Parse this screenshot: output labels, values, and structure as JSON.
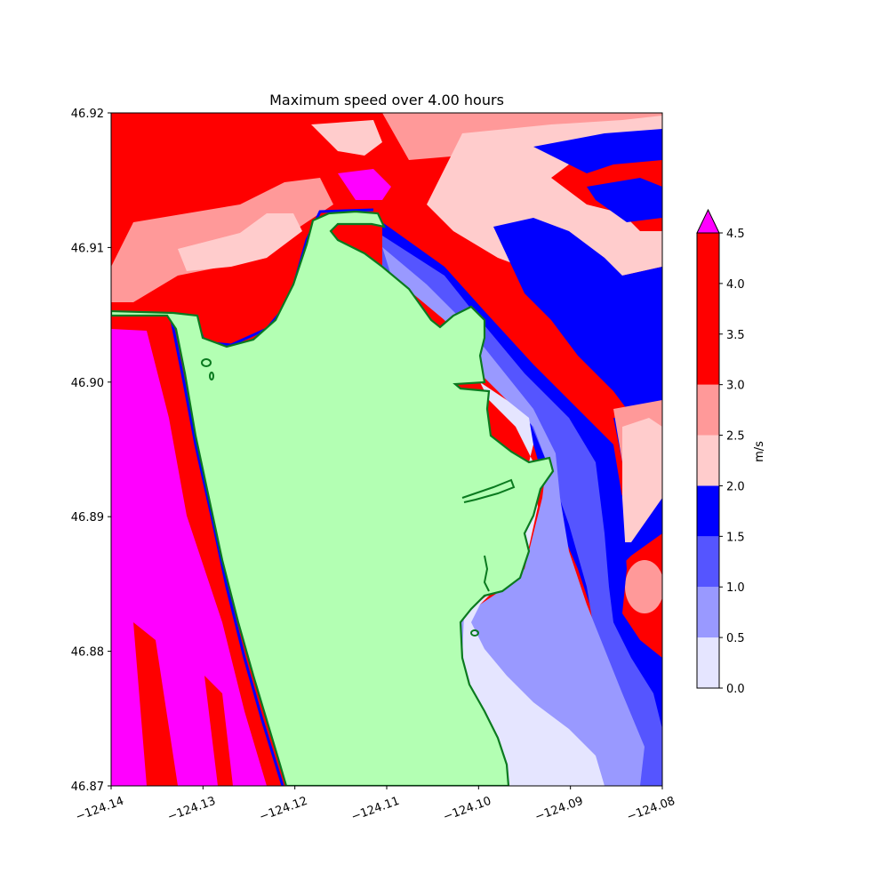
{
  "figure": {
    "title": "Maximum speed over 4.00 hours"
  },
  "map": {
    "extent": {
      "lon": [
        -124.14,
        -124.08
      ],
      "lat": [
        46.87,
        46.92
      ]
    },
    "x_ticks": [
      "−124.14",
      "−124.13",
      "−124.12",
      "−124.11",
      "−124.10",
      "−124.09",
      "−124.08"
    ],
    "y_ticks": [
      "46.87",
      "46.88",
      "46.89",
      "46.90",
      "46.91",
      "46.92"
    ],
    "land_color": "#b3ffb3",
    "shoreline_color": "#0a7a1f"
  },
  "colorbar": {
    "label": "m/s",
    "ticks": [
      "0.0",
      "0.5",
      "1.0",
      "1.5",
      "2.0",
      "2.5",
      "3.0",
      "3.5",
      "4.0",
      "4.5"
    ],
    "levels": [
      0,
      0.5,
      1.0,
      1.5,
      2.0,
      2.5,
      3.0,
      4.5
    ],
    "colors": [
      "#e5e5ff",
      "#9999ff",
      "#5555ff",
      "#0000ff",
      "#ffcccc",
      "#ff9999",
      "#ff0000"
    ],
    "extend_color": "#ff00ff"
  }
}
